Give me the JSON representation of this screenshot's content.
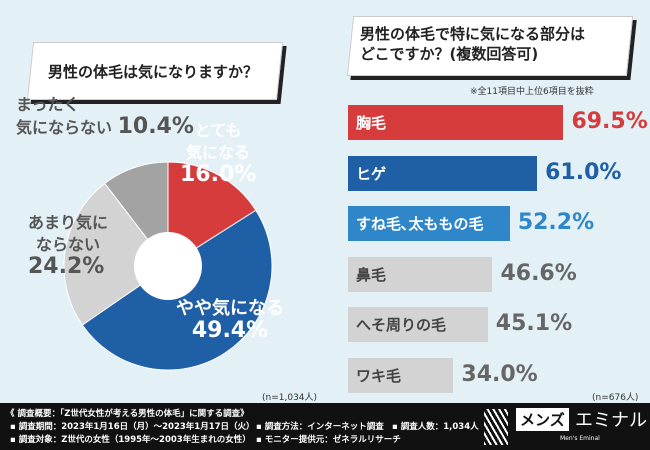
{
  "chart_data": [
    {
      "type": "pie",
      "title": "男性の体毛は気になりますか？",
      "note": "(n=1,034人)",
      "slices": [
        {
          "label": "とても気になる",
          "value": 16.0,
          "color": "#d63c3c"
        },
        {
          "label": "やや気になる",
          "value": 49.4,
          "color": "#1f5fa6"
        },
        {
          "label": "あまり気にならない",
          "value": 24.2,
          "color": "#d3d3d3"
        },
        {
          "label": "まったく気にならない",
          "value": 10.4,
          "color": "#a3a3a3"
        }
      ]
    },
    {
      "type": "bar",
      "orientation": "horizontal",
      "title": "男性の体毛で特に気になる部分はどこですか？(複数回答可)",
      "subnote": "※全11項目中上位6項目を抜粋",
      "note": "(n=676人)",
      "unit": "%",
      "categories": [
        "胸毛",
        "ヒゲ",
        "すね毛､太ももの毛",
        "鼻毛",
        "へそ周りの毛",
        "ワキ毛"
      ],
      "values": [
        69.5,
        61.0,
        52.2,
        46.6,
        45.1,
        34.0
      ],
      "colors": [
        "#d63c3c",
        "#1f5fa6",
        "#2f86c9",
        "#d3d3d3",
        "#d3d3d3",
        "#d3d3d3"
      ],
      "value_colors": [
        "#d63c3c",
        "#1f5fa6",
        "#2f86c9",
        "#666666",
        "#666666",
        "#666666"
      ]
    }
  ],
  "footer": {
    "summary": "《 調査概要：「Z世代女性が考える男性の体毛」に関する調査》",
    "period": "▪ 調査期間：2023年1月16日（月）～2023年1月17日（火）",
    "target": "▪ 調査対象：Z世代の女性（1995年～2003年生まれの女性）",
    "method": "▪ 調査方法：インターネット調査",
    "provider": "▪ モニター提供元：ゼネラルリサーチ",
    "count": "▪ 調査人数：1,034人",
    "logo_a": "メンズ",
    "logo_b": "エミナル",
    "logo_sub": "Men's Eminal"
  }
}
